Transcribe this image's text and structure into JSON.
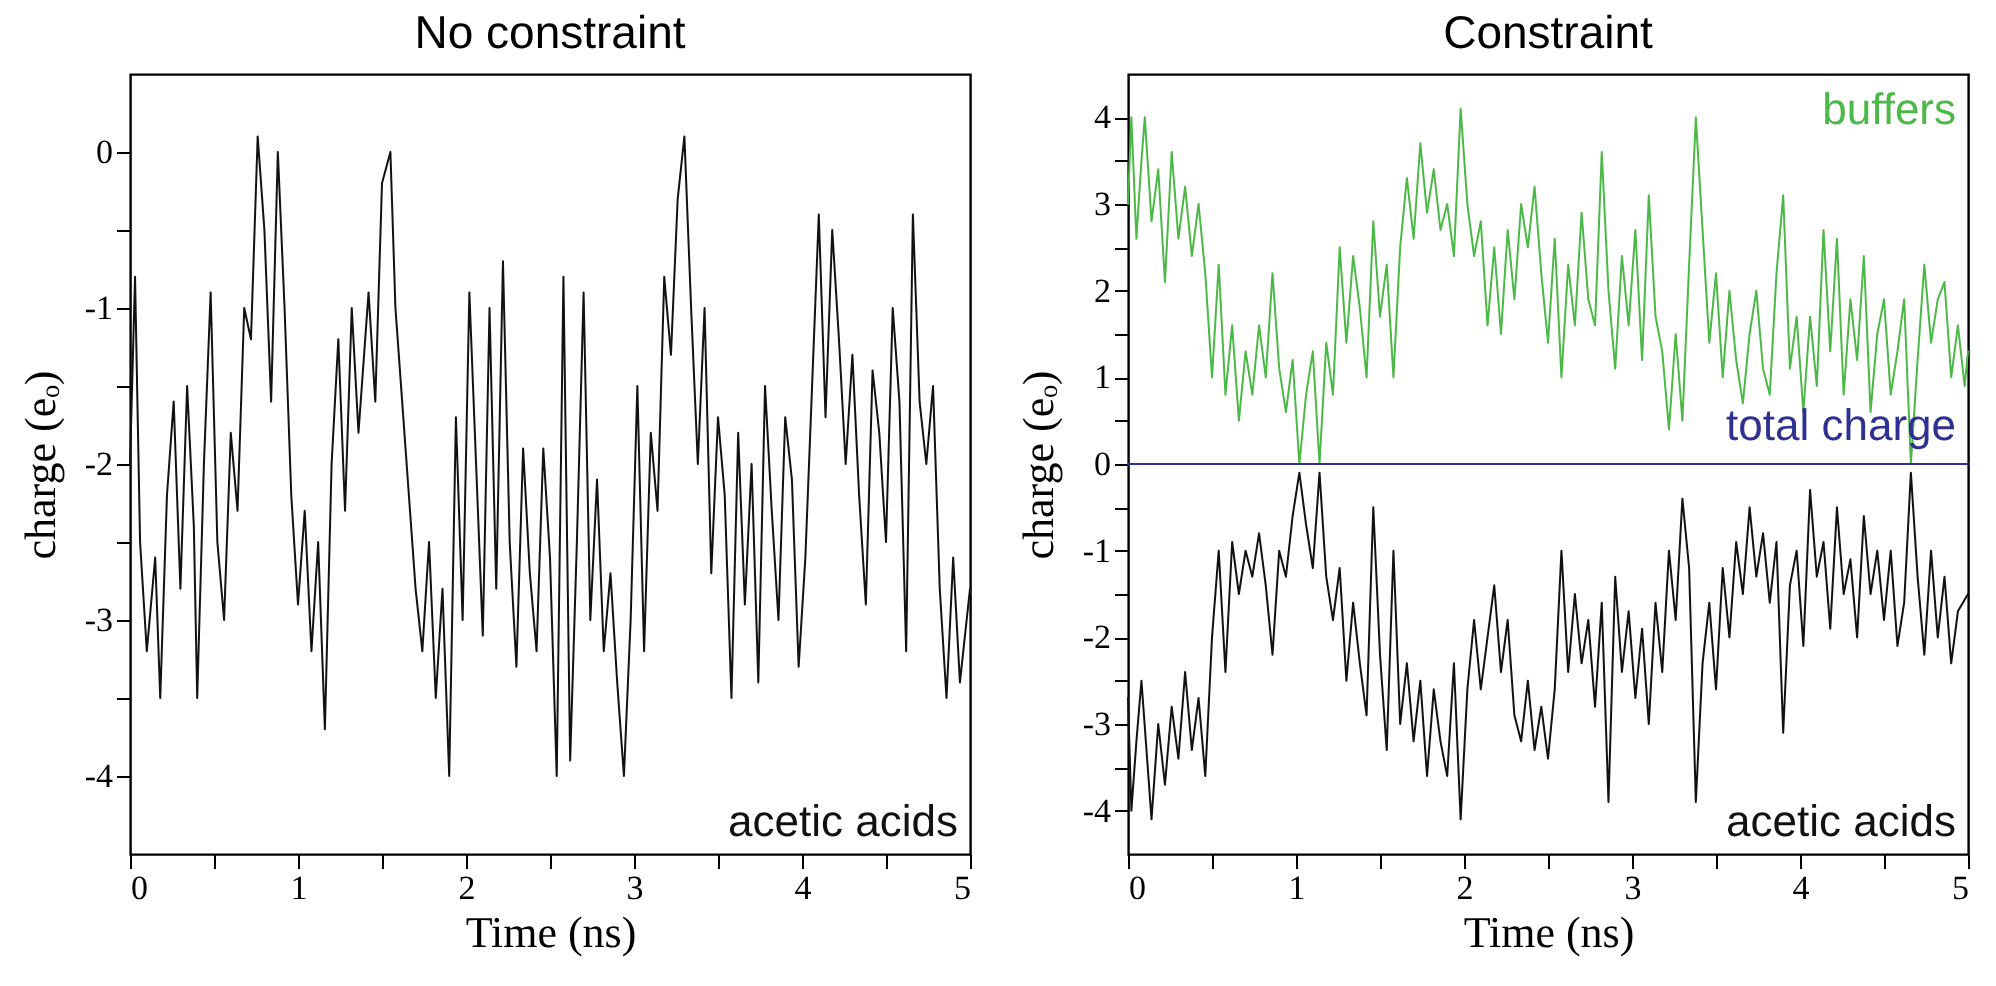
{
  "chart_data": [
    {
      "type": "line",
      "title": "No constraint",
      "xlabel": "Time (ns)",
      "ylabel": "charge (eₒ)",
      "xlim": [
        0,
        5
      ],
      "ylim": [
        -4.5,
        0.5
      ],
      "xticks": [
        0,
        {
          "value": 0.5,
          "label": null
        },
        1,
        {
          "value": 1.5,
          "label": null
        },
        2,
        {
          "value": 2.5,
          "label": null
        },
        3,
        {
          "value": 3.5,
          "label": null
        },
        4,
        {
          "value": 4.5,
          "label": null
        },
        5
      ],
      "yticks": [
        -4,
        {
          "value": -3.5,
          "label": null
        },
        -3,
        {
          "value": -2.5,
          "label": null
        },
        -2,
        {
          "value": -1.5,
          "label": null
        },
        -1,
        {
          "value": -0.5,
          "label": null
        },
        0
      ],
      "series": [
        {
          "name": "acetic acids",
          "color": "#111111",
          "x": [
            0.0,
            0.03,
            0.06,
            0.1,
            0.15,
            0.18,
            0.22,
            0.26,
            0.3,
            0.34,
            0.38,
            0.4,
            0.44,
            0.48,
            0.52,
            0.56,
            0.6,
            0.64,
            0.68,
            0.72,
            0.76,
            0.8,
            0.84,
            0.88,
            0.92,
            0.96,
            1.0,
            1.04,
            1.08,
            1.12,
            1.16,
            1.2,
            1.24,
            1.28,
            1.32,
            1.36,
            1.42,
            1.46,
            1.5,
            1.55,
            1.58,
            1.62,
            1.66,
            1.7,
            1.74,
            1.78,
            1.82,
            1.86,
            1.9,
            1.94,
            1.98,
            2.02,
            2.06,
            2.1,
            2.14,
            2.18,
            2.22,
            2.26,
            2.3,
            2.34,
            2.38,
            2.42,
            2.46,
            2.5,
            2.54,
            2.58,
            2.62,
            2.66,
            2.7,
            2.74,
            2.78,
            2.82,
            2.86,
            2.9,
            2.94,
            2.98,
            3.02,
            3.06,
            3.1,
            3.14,
            3.18,
            3.22,
            3.26,
            3.3,
            3.34,
            3.38,
            3.42,
            3.46,
            3.5,
            3.54,
            3.58,
            3.62,
            3.66,
            3.7,
            3.74,
            3.78,
            3.82,
            3.86,
            3.9,
            3.94,
            3.98,
            4.02,
            4.06,
            4.1,
            4.14,
            4.18,
            4.22,
            4.26,
            4.3,
            4.34,
            4.38,
            4.42,
            4.46,
            4.5,
            4.54,
            4.58,
            4.62,
            4.66,
            4.7,
            4.74,
            4.78,
            4.82,
            4.86,
            4.9,
            4.94,
            5.0
          ],
          "values": [
            -2.0,
            -0.8,
            -2.5,
            -3.2,
            -2.6,
            -3.5,
            -2.2,
            -1.6,
            -2.8,
            -1.5,
            -2.4,
            -3.5,
            -2.0,
            -0.9,
            -2.5,
            -3.0,
            -1.8,
            -2.3,
            -1.0,
            -1.2,
            0.1,
            -0.5,
            -1.6,
            0.0,
            -1.0,
            -2.2,
            -2.9,
            -2.3,
            -3.2,
            -2.5,
            -3.7,
            -2.0,
            -1.2,
            -2.3,
            -1.0,
            -1.8,
            -0.9,
            -1.6,
            -0.2,
            0.0,
            -1.0,
            -1.6,
            -2.2,
            -2.8,
            -3.2,
            -2.5,
            -3.5,
            -2.8,
            -4.0,
            -1.7,
            -3.0,
            -0.9,
            -2.0,
            -3.1,
            -1.0,
            -2.8,
            -0.7,
            -2.5,
            -3.3,
            -1.9,
            -2.7,
            -3.2,
            -1.9,
            -2.6,
            -4.0,
            -0.8,
            -3.9,
            -2.5,
            -0.9,
            -3.0,
            -2.1,
            -3.2,
            -2.7,
            -3.4,
            -4.0,
            -3.0,
            -1.5,
            -3.2,
            -1.8,
            -2.3,
            -0.8,
            -1.3,
            -0.3,
            0.1,
            -1.0,
            -2.0,
            -1.0,
            -2.7,
            -1.7,
            -2.2,
            -3.5,
            -1.8,
            -2.9,
            -2.0,
            -3.4,
            -1.5,
            -2.3,
            -3.0,
            -1.7,
            -2.1,
            -3.3,
            -2.6,
            -1.5,
            -0.4,
            -1.7,
            -0.5,
            -1.2,
            -2.0,
            -1.3,
            -2.2,
            -2.9,
            -1.4,
            -1.8,
            -2.5,
            -1.0,
            -1.6,
            -3.2,
            -0.4,
            -1.6,
            -2.0,
            -1.5,
            -2.8,
            -3.5,
            -2.6,
            -3.4,
            -2.8
          ]
        }
      ]
    },
    {
      "type": "line",
      "title": "Constraint",
      "xlabel": "Time (ns)",
      "ylabel": "charge (eₒ)",
      "xlim": [
        0,
        5
      ],
      "ylim": [
        -4.5,
        4.5
      ],
      "xticks": [
        0,
        {
          "value": 0.5,
          "label": null
        },
        1,
        {
          "value": 1.5,
          "label": null
        },
        2,
        {
          "value": 2.5,
          "label": null
        },
        3,
        {
          "value": 3.5,
          "label": null
        },
        4,
        {
          "value": 4.5,
          "label": null
        },
        5
      ],
      "yticks": [
        -4,
        {
          "value": -3.5,
          "label": null
        },
        -3,
        {
          "value": -2.5,
          "label": null
        },
        -2,
        {
          "value": -1.5,
          "label": null
        },
        -1,
        {
          "value": -0.5,
          "label": null
        },
        0,
        {
          "value": 0.5,
          "label": null
        },
        1,
        {
          "value": 1.5,
          "label": null
        },
        2,
        {
          "value": 2.5,
          "label": null
        },
        3,
        {
          "value": 3.5,
          "label": null
        },
        4
      ],
      "series": [
        {
          "name": "buffers",
          "color": "#4cb848",
          "x": [
            0.0,
            0.02,
            0.05,
            0.08,
            0.1,
            0.14,
            0.18,
            0.22,
            0.26,
            0.3,
            0.34,
            0.38,
            0.42,
            0.46,
            0.5,
            0.54,
            0.58,
            0.62,
            0.66,
            0.7,
            0.74,
            0.78,
            0.82,
            0.86,
            0.9,
            0.94,
            0.98,
            1.02,
            1.06,
            1.1,
            1.14,
            1.18,
            1.22,
            1.26,
            1.3,
            1.34,
            1.38,
            1.42,
            1.46,
            1.5,
            1.54,
            1.58,
            1.62,
            1.66,
            1.7,
            1.74,
            1.78,
            1.82,
            1.86,
            1.9,
            1.94,
            1.98,
            2.02,
            2.06,
            2.1,
            2.14,
            2.18,
            2.22,
            2.26,
            2.3,
            2.34,
            2.38,
            2.42,
            2.46,
            2.5,
            2.54,
            2.58,
            2.62,
            2.66,
            2.7,
            2.74,
            2.78,
            2.82,
            2.86,
            2.9,
            2.94,
            2.98,
            3.02,
            3.06,
            3.1,
            3.14,
            3.18,
            3.22,
            3.26,
            3.3,
            3.34,
            3.38,
            3.42,
            3.46,
            3.5,
            3.54,
            3.58,
            3.62,
            3.66,
            3.7,
            3.74,
            3.78,
            3.82,
            3.86,
            3.9,
            3.94,
            3.98,
            4.02,
            4.06,
            4.1,
            4.14,
            4.18,
            4.22,
            4.26,
            4.3,
            4.34,
            4.38,
            4.42,
            4.46,
            4.5,
            4.54,
            4.58,
            4.62,
            4.66,
            4.7,
            4.74,
            4.78,
            4.82,
            4.86,
            4.9,
            4.94,
            4.98,
            5.0
          ],
          "values": [
            3.0,
            4.0,
            2.6,
            3.5,
            4.0,
            2.8,
            3.4,
            2.1,
            3.6,
            2.6,
            3.2,
            2.4,
            3.0,
            2.2,
            1.0,
            2.3,
            0.8,
            1.6,
            0.5,
            1.3,
            0.8,
            1.6,
            1.0,
            2.2,
            1.1,
            0.6,
            1.2,
            0.0,
            0.8,
            1.3,
            0.0,
            1.4,
            0.8,
            2.5,
            1.4,
            2.4,
            1.8,
            1.0,
            2.8,
            1.7,
            2.3,
            1.0,
            2.5,
            3.3,
            2.6,
            3.7,
            2.9,
            3.4,
            2.7,
            3.0,
            2.4,
            4.1,
            3.0,
            2.4,
            2.8,
            1.6,
            2.5,
            1.5,
            2.7,
            1.9,
            3.0,
            2.5,
            3.2,
            2.2,
            1.4,
            2.6,
            1.0,
            2.3,
            1.6,
            2.9,
            1.9,
            1.6,
            3.6,
            2.0,
            1.1,
            2.4,
            1.6,
            2.7,
            1.2,
            3.1,
            1.7,
            1.3,
            0.4,
            1.5,
            0.5,
            2.3,
            4.0,
            2.7,
            1.4,
            2.2,
            1.0,
            2.0,
            1.2,
            0.7,
            1.5,
            2.0,
            1.1,
            0.8,
            2.2,
            3.1,
            1.1,
            1.7,
            0.6,
            1.7,
            0.9,
            2.7,
            1.3,
            2.6,
            0.8,
            1.9,
            1.2,
            2.4,
            0.6,
            1.5,
            1.9,
            0.8,
            1.3,
            1.9,
            0.0,
            1.2,
            2.3,
            1.4,
            1.9,
            2.1,
            1.0,
            1.6,
            0.9,
            1.3
          ]
        },
        {
          "name": "total charge",
          "color": "#2e3192",
          "x": [
            0,
            5
          ],
          "values": [
            0,
            0
          ]
        },
        {
          "name": "acetic acids",
          "color": "#111111",
          "x": [
            0.0,
            0.02,
            0.05,
            0.08,
            0.11,
            0.14,
            0.18,
            0.22,
            0.26,
            0.3,
            0.34,
            0.38,
            0.42,
            0.46,
            0.5,
            0.54,
            0.58,
            0.62,
            0.66,
            0.7,
            0.74,
            0.78,
            0.82,
            0.86,
            0.9,
            0.94,
            0.98,
            1.02,
            1.06,
            1.1,
            1.14,
            1.18,
            1.22,
            1.26,
            1.3,
            1.34,
            1.38,
            1.42,
            1.46,
            1.5,
            1.54,
            1.58,
            1.62,
            1.66,
            1.7,
            1.74,
            1.78,
            1.82,
            1.86,
            1.9,
            1.94,
            1.98,
            2.02,
            2.06,
            2.1,
            2.14,
            2.18,
            2.22,
            2.26,
            2.3,
            2.34,
            2.38,
            2.42,
            2.46,
            2.5,
            2.54,
            2.58,
            2.62,
            2.66,
            2.7,
            2.74,
            2.78,
            2.82,
            2.86,
            2.9,
            2.94,
            2.98,
            3.02,
            3.06,
            3.1,
            3.14,
            3.18,
            3.22,
            3.26,
            3.3,
            3.34,
            3.38,
            3.42,
            3.46,
            3.5,
            3.54,
            3.58,
            3.62,
            3.66,
            3.7,
            3.74,
            3.78,
            3.82,
            3.86,
            3.9,
            3.94,
            3.98,
            4.02,
            4.06,
            4.1,
            4.14,
            4.18,
            4.22,
            4.26,
            4.3,
            4.34,
            4.38,
            4.42,
            4.46,
            4.5,
            4.54,
            4.58,
            4.62,
            4.66,
            4.7,
            4.74,
            4.78,
            4.82,
            4.86,
            4.9,
            4.94,
            5.0
          ],
          "values": [
            -2.7,
            -4.0,
            -3.2,
            -2.5,
            -3.3,
            -4.1,
            -3.0,
            -3.7,
            -2.8,
            -3.4,
            -2.4,
            -3.3,
            -2.7,
            -3.6,
            -2.0,
            -1.0,
            -2.4,
            -0.9,
            -1.5,
            -1.0,
            -1.3,
            -0.8,
            -1.4,
            -2.2,
            -1.0,
            -1.3,
            -0.6,
            -0.1,
            -0.7,
            -1.2,
            -0.1,
            -1.3,
            -1.8,
            -1.2,
            -2.5,
            -1.6,
            -2.3,
            -2.9,
            -0.5,
            -2.2,
            -3.3,
            -1.0,
            -3.0,
            -2.3,
            -3.2,
            -2.5,
            -3.6,
            -2.6,
            -3.2,
            -3.6,
            -2.3,
            -4.1,
            -2.6,
            -1.8,
            -2.6,
            -2.0,
            -1.4,
            -2.4,
            -1.8,
            -2.9,
            -3.2,
            -2.5,
            -3.3,
            -2.8,
            -3.4,
            -2.6,
            -1.0,
            -2.4,
            -1.5,
            -2.3,
            -1.8,
            -2.8,
            -1.6,
            -3.9,
            -1.3,
            -2.4,
            -1.7,
            -2.7,
            -1.9,
            -3.0,
            -1.6,
            -2.4,
            -1.0,
            -1.8,
            -0.4,
            -1.2,
            -3.9,
            -2.3,
            -1.6,
            -2.6,
            -1.2,
            -2.0,
            -0.9,
            -1.5,
            -0.5,
            -1.3,
            -0.8,
            -1.6,
            -0.9,
            -3.1,
            -1.4,
            -1.0,
            -2.1,
            -0.3,
            -1.3,
            -0.9,
            -1.9,
            -0.5,
            -1.5,
            -1.1,
            -2.0,
            -0.6,
            -1.5,
            -1.0,
            -1.8,
            -1.0,
            -2.1,
            -1.6,
            -0.1,
            -1.3,
            -2.2,
            -1.0,
            -2.0,
            -1.3,
            -2.3,
            -1.7,
            -1.5
          ]
        }
      ]
    }
  ]
}
